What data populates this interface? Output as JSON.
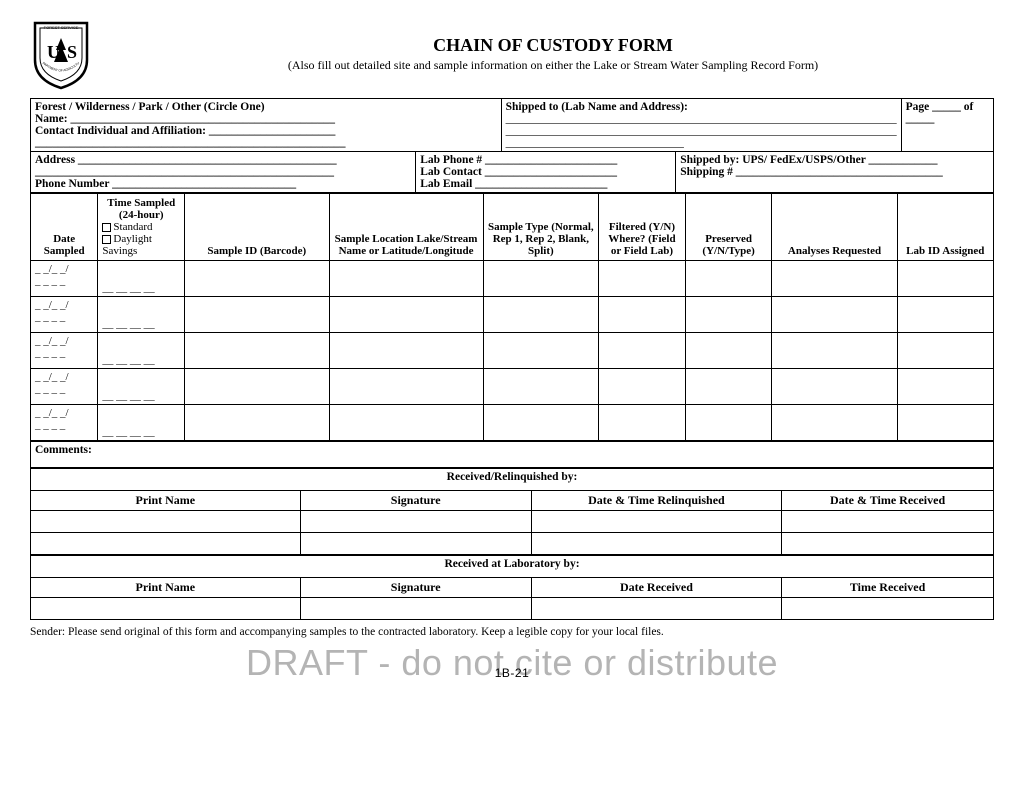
{
  "header": {
    "title": "CHAIN OF CUSTODY FORM",
    "subtitle": "(Also fill out detailed site and sample information on either the Lake or Stream Water Sampling Record Form)",
    "agency_top": "FOREST SERVICE",
    "agency_center": "U S",
    "agency_bottom": "DEPARTMENT OF AGRICULTURE"
  },
  "info": {
    "forest_label": "Forest / Wilderness / Park / Other (Circle One)",
    "name_label": "Name: ______________________________________________",
    "contact_label": "Contact Individual and Affiliation: ______________________",
    "contact_line2": "______________________________________________________",
    "shipped_to_label": "Shipped to (Lab Name and Address):",
    "shipped_lines": "____________________________________________________________________\n____________________________________________________________________\n_______________________________",
    "page_label": "Page _____ of _____",
    "address_label": "Address _____________________________________________",
    "address_line2": "____________________________________________________",
    "phone_label": "Phone Number ________________________________",
    "lab_phone_label": "Lab Phone # _______________________",
    "lab_contact_label": "Lab Contact _______________________",
    "lab_email_label": "Lab Email _______________________",
    "shipped_by_label": "Shipped by: UPS/ FedEx/USPS/Other ____________",
    "shipping_no_label": "Shipping # ____________________________________"
  },
  "sample_table": {
    "headers": {
      "date": "Date Sampled",
      "time": "Time Sampled (24-hour)",
      "time_std": "Standard",
      "time_dst": "Daylight Savings",
      "sample_id": "Sample ID (Barcode)",
      "location": "Sample Location Lake/Stream Name or Latitude/Longitude",
      "type": "Sample Type (Normal, Rep 1, Rep 2, Blank, Split)",
      "filtered": "Filtered (Y/N) Where? (Field or Field Lab)",
      "preserved": "Preserved (Y/N/Type)",
      "analyses": "Analyses Requested",
      "labid": "Lab ID Assigned"
    },
    "date_placeholder_top": "_ _/_ _/",
    "date_placeholder_bottom": "_ _ _ _",
    "time_placeholder": "__ __ __ __",
    "row_count": 5
  },
  "comments_label": "Comments:",
  "received_section": {
    "title": "Received/Relinquished by:",
    "cols": [
      "Print Name",
      "Signature",
      "Date & Time Relinquished",
      "Date & Time Received"
    ]
  },
  "lab_section": {
    "title": "Received at Laboratory by:",
    "cols": [
      "Print Name",
      "Signature",
      "Date Received",
      "Time Received"
    ]
  },
  "footnote": "Sender: Please send original of this form and accompanying samples to the contracted laboratory. Keep a legible copy for your local files.",
  "watermark": "DRAFT - do not cite or distribute",
  "page_number": "1B-21",
  "colors": {
    "border": "#000000",
    "watermark": "#b4b4b4",
    "background": "#ffffff"
  },
  "column_widths_pct": [
    7,
    9,
    15,
    16,
    12,
    9,
    9,
    13,
    10
  ]
}
